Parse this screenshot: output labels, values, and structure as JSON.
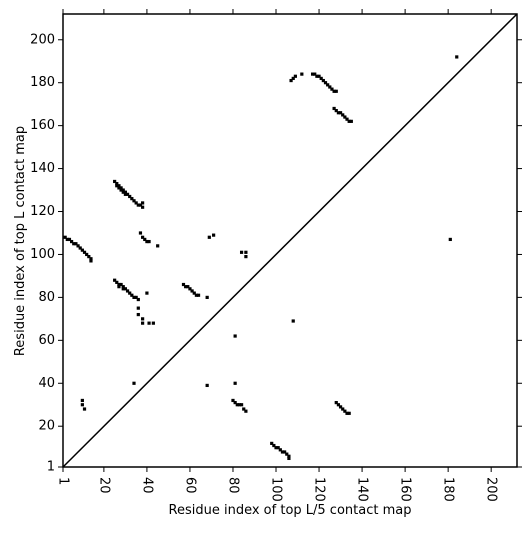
{
  "chart_data": {
    "type": "scatter",
    "xlabel": "Residue index of top L/5 contact map",
    "ylabel": "Residue index of top L contact map",
    "xlim": [
      1,
      212
    ],
    "ylim": [
      1,
      212
    ],
    "xticks": [
      1,
      20,
      40,
      60,
      80,
      100,
      120,
      140,
      160,
      180,
      200
    ],
    "yticks": [
      1,
      20,
      40,
      60,
      80,
      100,
      120,
      140,
      160,
      180,
      200
    ],
    "diagonal": true,
    "series": [
      {
        "color": "#000000",
        "x": [
          2,
          3,
          4,
          5,
          6,
          7,
          8,
          9,
          10,
          11,
          12,
          13,
          14,
          14,
          25,
          26,
          27,
          28,
          29,
          30,
          31,
          32,
          33,
          34,
          35,
          36,
          37,
          38,
          38,
          26,
          27,
          28,
          29,
          30,
          25,
          26,
          27,
          28,
          29,
          30,
          31,
          32,
          33,
          34,
          35,
          36,
          27,
          29,
          40,
          37,
          38,
          39,
          40,
          41,
          45,
          36,
          36,
          38,
          38,
          41,
          43,
          57,
          58,
          59,
          60,
          61,
          62,
          63,
          64,
          68,
          69,
          71,
          84,
          86,
          86,
          81,
          81,
          68,
          34,
          10,
          10,
          11,
          108,
          80,
          81,
          82,
          83,
          84,
          85,
          86,
          98,
          99,
          100,
          101,
          102,
          103,
          104,
          105,
          106,
          106,
          128,
          129,
          130,
          131,
          132,
          133,
          134,
          107,
          108,
          109,
          112,
          117,
          118,
          119,
          120,
          121,
          122,
          123,
          124,
          125,
          126,
          127,
          128,
          127,
          128,
          129,
          130,
          131,
          132,
          133,
          134,
          135,
          184,
          181
        ],
        "values": [
          108,
          107,
          107,
          106,
          105,
          105,
          104,
          103,
          102,
          101,
          100,
          99,
          98,
          97,
          134,
          133,
          132,
          131,
          130,
          129,
          128,
          127,
          126,
          125,
          124,
          123,
          123,
          122,
          124,
          132,
          131,
          130,
          129,
          128,
          88,
          87,
          86,
          86,
          85,
          84,
          83,
          82,
          81,
          80,
          80,
          79,
          85,
          84,
          82,
          110,
          108,
          107,
          106,
          106,
          104,
          75,
          72,
          70,
          68,
          68,
          68,
          86,
          85,
          85,
          84,
          83,
          82,
          81,
          81,
          80,
          108,
          109,
          101,
          101,
          99,
          62,
          40,
          39,
          40,
          32,
          30,
          28,
          69,
          32,
          31,
          30,
          30,
          30,
          28,
          27,
          12,
          11,
          10,
          10,
          9,
          8,
          8,
          7,
          5,
          6,
          31,
          30,
          29,
          28,
          27,
          26,
          26,
          181,
          182,
          183,
          184,
          184,
          184,
          183,
          183,
          182,
          181,
          180,
          179,
          178,
          177,
          176,
          176,
          168,
          167,
          166,
          166,
          165,
          164,
          163,
          162,
          162,
          192,
          107
        ]
      }
    ]
  }
}
